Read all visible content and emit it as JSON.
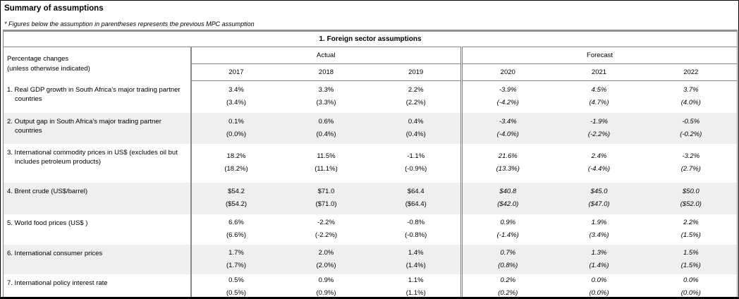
{
  "page": {
    "title": "Summary of assumptions",
    "note": "* Figures below the assumption in parentheses represents the previous MPC assumption"
  },
  "colors": {
    "row_shade": "#efefef",
    "border_gray": "#808080",
    "outer_border": "#000000",
    "text": "#000000"
  },
  "table": {
    "title": "1. Foreign sector assumptions",
    "row_header": {
      "line1": "Percentage changes",
      "line2": "(unless otherwise indicated)"
    },
    "groups": [
      {
        "label": "Actual",
        "years": [
          "2017",
          "2018",
          "2019"
        ]
      },
      {
        "label": "Forecast",
        "years": [
          "2020",
          "2021",
          "2022"
        ]
      }
    ],
    "rows": [
      {
        "label": "1. Real GDP growth in South Africa's major trading partner countries",
        "actual": [
          "3.4%",
          "3.3%",
          "2.2%"
        ],
        "actual_previous": [
          "(3.4%)",
          "(3.3%)",
          "(2.2%)"
        ],
        "forecast": [
          "-3.9%",
          "4.5%",
          "3.7%"
        ],
        "forecast_previous": [
          "(-4.2%)",
          "(4.7%)",
          "(4.0%)"
        ]
      },
      {
        "label": "2. Output gap in South Africa's major trading partner countries",
        "actual": [
          "0.1%",
          "0.6%",
          "0.4%"
        ],
        "actual_previous": [
          "(0.0%)",
          "(0.4%)",
          "(0.4%)"
        ],
        "forecast": [
          "-3.4%",
          "-1.9%",
          "-0.5%"
        ],
        "forecast_previous": [
          "(-4.0%)",
          "(-2.2%)",
          "(-0.2%)"
        ]
      },
      {
        "label": "3. International commodity prices in US$ (excludes oil but includes petroleum products)",
        "actual": [
          "18.2%",
          "11.5%",
          "-1.1%"
        ],
        "actual_previous": [
          "(18.2%)",
          "(11.1%)",
          "(-0.9%)"
        ],
        "forecast": [
          "21.6%",
          "2.4%",
          "-3.2%"
        ],
        "forecast_previous": [
          "(13.3%)",
          "(-4.4%)",
          "(2.7%)"
        ]
      },
      {
        "label": "4. Brent crude (US$/barrel)",
        "actual": [
          "$54.2",
          "$71.0",
          "$64.4"
        ],
        "actual_previous": [
          "($54.2)",
          "($71.0)",
          "($64.4)"
        ],
        "forecast": [
          "$40.8",
          "$45.0",
          "$50.0"
        ],
        "forecast_previous": [
          "($42.0)",
          "($47.0)",
          "($52.0)"
        ]
      },
      {
        "label": "5. World food prices (US$ )",
        "actual": [
          "6.6%",
          "-2.2%",
          "-0.8%"
        ],
        "actual_previous": [
          "(6.6%)",
          "(-2.2%)",
          "(-0.8%)"
        ],
        "forecast": [
          "0.9%",
          "1.9%",
          "2.2%"
        ],
        "forecast_previous": [
          "(-1.4%)",
          "(3.4%)",
          "(1.5%)"
        ]
      },
      {
        "label": "6. International consumer prices",
        "actual": [
          "1.7%",
          "2.0%",
          "1.4%"
        ],
        "actual_previous": [
          "(1.7%)",
          "(2.0%)",
          "(1.4%)"
        ],
        "forecast": [
          "0.7%",
          "1.3%",
          "1.5%"
        ],
        "forecast_previous": [
          "(0.8%)",
          "(1.4%)",
          "(1.5%)"
        ]
      },
      {
        "label": "7. International policy interest rate",
        "actual": [
          "0.5%",
          "0.9%",
          "1.1%"
        ],
        "actual_previous": [
          "(0.5%)",
          "(0.9%)",
          "(1.1%)"
        ],
        "forecast": [
          "0.2%",
          "0.0%",
          "0.0%"
        ],
        "forecast_previous": [
          "(0.2%)",
          "(0.0%)",
          "(0.0%)"
        ]
      }
    ]
  }
}
